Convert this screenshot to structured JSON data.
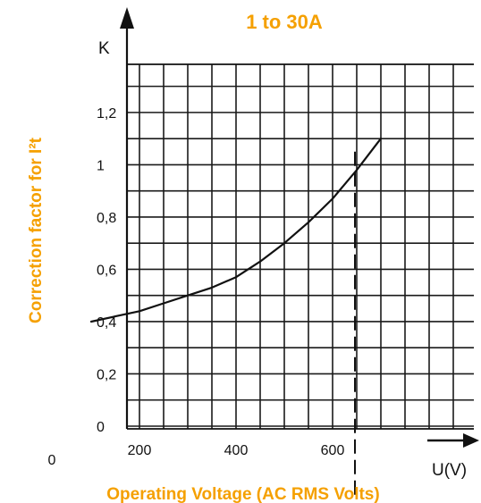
{
  "colors": {
    "accent": "#f5a000",
    "ink": "#111111",
    "grid": "#1a1a1a"
  },
  "chart_data": {
    "type": "line",
    "title": "1 to 30A",
    "xlabel": "Operating Voltage (AC RMS Volts)",
    "ylabel": "Correction factor for I²t",
    "x_axis_symbol": "U(V)",
    "y_axis_symbol": "K",
    "xlim": [
      0,
      800
    ],
    "ylim": [
      0,
      1.4
    ],
    "x_tick_labels": [
      "0",
      "200",
      "400",
      "600"
    ],
    "y_tick_labels": [
      "0",
      "0,2",
      "0,4",
      "0,6",
      "0,8",
      "1",
      "1,2"
    ],
    "grid": true,
    "series": [
      {
        "x": [
          100,
          150,
          200,
          250,
          300,
          350,
          400,
          450,
          500,
          550,
          600,
          650,
          700
        ],
        "y": [
          0.4,
          0.42,
          0.44,
          0.47,
          0.5,
          0.53,
          0.57,
          0.63,
          0.7,
          0.78,
          0.87,
          0.98,
          1.1
        ]
      }
    ],
    "annotations": [
      {
        "type": "dashed-vertical",
        "x": 650
      }
    ]
  }
}
